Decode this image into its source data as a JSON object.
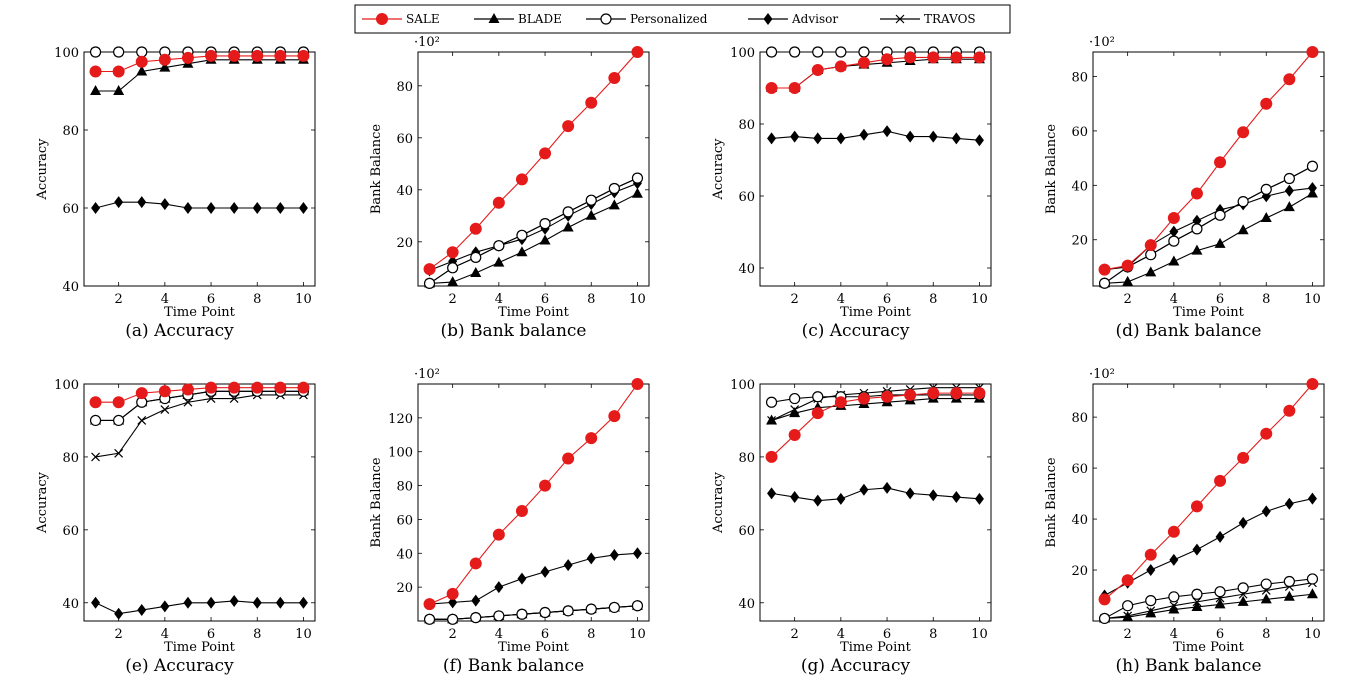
{
  "legend": [
    "SALE",
    "BLADE",
    "Personalized",
    "Advisor",
    "TRAVOS"
  ],
  "colors": {
    "SALE": "#e51b1b",
    "others": "#000000"
  },
  "chart_data": [
    {
      "type": "line",
      "caption": "(a) Accuracy",
      "xlabel": "Time Point",
      "ylabel": "Accuracy",
      "x": [
        1,
        2,
        3,
        4,
        5,
        6,
        7,
        8,
        9,
        10
      ],
      "xticks": [
        2,
        4,
        6,
        8,
        10
      ],
      "ylim": [
        40,
        100
      ],
      "yticks": [
        40,
        60,
        80,
        100
      ],
      "multiplier": "",
      "series": [
        {
          "name": "Advisor",
          "values": [
            60,
            61.5,
            61.5,
            61,
            60,
            60,
            60,
            60,
            60,
            60
          ]
        },
        {
          "name": "BLADE",
          "values": [
            90,
            90,
            95,
            96,
            97,
            98,
            98,
            98,
            98,
            98
          ]
        },
        {
          "name": "TRAVOS",
          "values": [
            100,
            100,
            100,
            100,
            100,
            100,
            100,
            100,
            100,
            100
          ]
        },
        {
          "name": "Personalized",
          "values": [
            100,
            100,
            100,
            100,
            100,
            100,
            100,
            100,
            100,
            100
          ]
        },
        {
          "name": "SALE",
          "values": [
            95,
            95,
            97.5,
            98,
            98.5,
            99,
            99,
            99,
            99,
            99
          ]
        }
      ]
    },
    {
      "type": "line",
      "caption": "(b) Bank balance",
      "xlabel": "Time Point",
      "ylabel": "Bank Balance",
      "x": [
        1,
        2,
        3,
        4,
        5,
        6,
        7,
        8,
        9,
        10
      ],
      "xticks": [
        2,
        4,
        6,
        8,
        10
      ],
      "ylim": [
        3,
        93
      ],
      "yticks": [
        20,
        40,
        60,
        80
      ],
      "multiplier": "·10²",
      "series": [
        {
          "name": "BLADE",
          "values": [
            4,
            4.5,
            8,
            12,
            16,
            20.5,
            25.5,
            30,
            34,
            38.5
          ]
        },
        {
          "name": "Advisor",
          "values": [
            9,
            12.5,
            16,
            18.5,
            21,
            25,
            30,
            34.5,
            39,
            42.5
          ]
        },
        {
          "name": "TRAVOS",
          "values": [
            4,
            10,
            14,
            18.5,
            22.5,
            27,
            31.5,
            36,
            40.5,
            44.5
          ]
        },
        {
          "name": "Personalized",
          "values": [
            4,
            10,
            14,
            18.5,
            22.5,
            27,
            31.5,
            36,
            40.5,
            44.5
          ]
        },
        {
          "name": "SALE",
          "values": [
            9.5,
            16,
            25,
            35,
            44,
            54,
            64.5,
            73.5,
            83,
            93
          ]
        }
      ]
    },
    {
      "type": "line",
      "caption": "(c) Accuracy",
      "xlabel": "Time Point",
      "ylabel": "Accuracy",
      "x": [
        1,
        2,
        3,
        4,
        5,
        6,
        7,
        8,
        9,
        10
      ],
      "xticks": [
        2,
        4,
        6,
        8,
        10
      ],
      "ylim": [
        35,
        100
      ],
      "yticks": [
        40,
        60,
        80,
        100
      ],
      "multiplier": "",
      "series": [
        {
          "name": "Advisor",
          "values": [
            76,
            76.5,
            76,
            76,
            77,
            78,
            76.5,
            76.5,
            76,
            75.5
          ]
        },
        {
          "name": "BLADE",
          "values": [
            90,
            90,
            95,
            96,
            96.5,
            97,
            97.5,
            98,
            98,
            98
          ]
        },
        {
          "name": "TRAVOS",
          "values": [
            100,
            100,
            100,
            100,
            100,
            100,
            100,
            100,
            100,
            100
          ]
        },
        {
          "name": "Personalized",
          "values": [
            100,
            100,
            100,
            100,
            100,
            100,
            100,
            100,
            100,
            100
          ]
        },
        {
          "name": "SALE",
          "values": [
            90,
            90,
            95,
            96,
            97,
            98,
            98.5,
            98.5,
            98.5,
            98.5
          ]
        }
      ]
    },
    {
      "type": "line",
      "caption": "(d) Bank balance",
      "xlabel": "Time Point",
      "ylabel": "Bank Balance",
      "x": [
        1,
        2,
        3,
        4,
        5,
        6,
        7,
        8,
        9,
        10
      ],
      "xticks": [
        2,
        4,
        6,
        8,
        10
      ],
      "ylim": [
        3,
        89
      ],
      "yticks": [
        20,
        40,
        60,
        80
      ],
      "multiplier": "·10²",
      "series": [
        {
          "name": "BLADE",
          "values": [
            4,
            4.5,
            8,
            12,
            16,
            18.5,
            23.5,
            28,
            32,
            37
          ]
        },
        {
          "name": "Advisor",
          "values": [
            9,
            10,
            18,
            23,
            27,
            31,
            33,
            36,
            38,
            39
          ]
        },
        {
          "name": "TRAVOS",
          "values": [
            4,
            10,
            14.5,
            19.5,
            24,
            29,
            34,
            38.5,
            42.5,
            47
          ]
        },
        {
          "name": "Personalized",
          "values": [
            4,
            10,
            14.5,
            19.5,
            24,
            29,
            34,
            38.5,
            42.5,
            47
          ]
        },
        {
          "name": "SALE",
          "values": [
            9,
            10.5,
            18,
            28,
            37,
            48.5,
            59.5,
            70,
            79,
            89
          ]
        }
      ]
    },
    {
      "type": "line",
      "caption": "(e) Accuracy",
      "xlabel": "Time Point",
      "ylabel": "Accuracy",
      "x": [
        1,
        2,
        3,
        4,
        5,
        6,
        7,
        8,
        9,
        10
      ],
      "xticks": [
        2,
        4,
        6,
        8,
        10
      ],
      "ylim": [
        35,
        100
      ],
      "yticks": [
        40,
        60,
        80,
        100
      ],
      "multiplier": "",
      "series": [
        {
          "name": "Advisor",
          "values": [
            40,
            37,
            38,
            39,
            40,
            40,
            40.5,
            40,
            40,
            40
          ]
        },
        {
          "name": "TRAVOS",
          "values": [
            80,
            81,
            90,
            93,
            95,
            96,
            96,
            97,
            97,
            97
          ]
        },
        {
          "name": "BLADE",
          "values": [
            90,
            90,
            95,
            96,
            97,
            98,
            98,
            98,
            98,
            98
          ]
        },
        {
          "name": "Personalized",
          "values": [
            90,
            90,
            95,
            96,
            97,
            98,
            98,
            98,
            98,
            98
          ]
        },
        {
          "name": "SALE",
          "values": [
            95,
            95,
            97.5,
            98,
            98.5,
            99,
            99,
            99,
            99,
            99
          ]
        }
      ]
    },
    {
      "type": "line",
      "caption": "(f) Bank balance",
      "xlabel": "Time Point",
      "ylabel": "Bank Balance",
      "x": [
        1,
        2,
        3,
        4,
        5,
        6,
        7,
        8,
        9,
        10
      ],
      "xticks": [
        2,
        4,
        6,
        8,
        10
      ],
      "ylim": [
        0,
        140
      ],
      "yticks": [
        20,
        40,
        60,
        80,
        100,
        120
      ],
      "multiplier": "·10²",
      "series": [
        {
          "name": "BLADE",
          "values": [
            1,
            1,
            2,
            3,
            4,
            5,
            6,
            7,
            8,
            9
          ]
        },
        {
          "name": "TRAVOS",
          "values": [
            1,
            1,
            2,
            3,
            4,
            5,
            6,
            7,
            8,
            9
          ]
        },
        {
          "name": "Personalized",
          "values": [
            1,
            1,
            2,
            3,
            4,
            5,
            6,
            7,
            8,
            9
          ]
        },
        {
          "name": "Advisor",
          "values": [
            10,
            11,
            12,
            20,
            25,
            29,
            33,
            37,
            39,
            40
          ]
        },
        {
          "name": "SALE",
          "values": [
            10,
            16,
            34,
            51,
            65,
            80,
            96,
            108,
            121,
            140
          ]
        }
      ]
    },
    {
      "type": "line",
      "caption": "(g) Accuracy",
      "xlabel": "Time Point",
      "ylabel": "Accuracy",
      "x": [
        1,
        2,
        3,
        4,
        5,
        6,
        7,
        8,
        9,
        10
      ],
      "xticks": [
        2,
        4,
        6,
        8,
        10
      ],
      "ylim": [
        35,
        100
      ],
      "yticks": [
        40,
        60,
        80,
        100
      ],
      "multiplier": "",
      "series": [
        {
          "name": "Advisor",
          "values": [
            70,
            69,
            68,
            68.5,
            71,
            71.5,
            70,
            69.5,
            69,
            68.5
          ]
        },
        {
          "name": "BLADE",
          "values": [
            90,
            92,
            93.5,
            94,
            94.5,
            95,
            95.5,
            96,
            96,
            96
          ]
        },
        {
          "name": "TRAVOS",
          "values": [
            90,
            93,
            96,
            97,
            97.5,
            98,
            98.5,
            99,
            99,
            99
          ]
        },
        {
          "name": "Personalized",
          "values": [
            95,
            96,
            96.5,
            96.5,
            96.5,
            97,
            97,
            97,
            97,
            97
          ]
        },
        {
          "name": "SALE",
          "values": [
            80,
            86,
            92,
            95,
            96,
            96.5,
            97,
            97.5,
            97.5,
            97.5
          ]
        }
      ]
    },
    {
      "type": "line",
      "caption": "(h) Bank balance",
      "xlabel": "Time Point",
      "ylabel": "Bank Balance",
      "x": [
        1,
        2,
        3,
        4,
        5,
        6,
        7,
        8,
        9,
        10
      ],
      "xticks": [
        2,
        4,
        6,
        8,
        10
      ],
      "ylim": [
        0,
        93
      ],
      "yticks": [
        20,
        40,
        60,
        80
      ],
      "multiplier": "·10²",
      "series": [
        {
          "name": "BLADE",
          "values": [
            1,
            1.5,
            3,
            4.5,
            5.5,
            6.5,
            7.5,
            8.5,
            9.5,
            10.5
          ]
        },
        {
          "name": "TRAVOS",
          "values": [
            1,
            2,
            4,
            6,
            7.5,
            9,
            10.5,
            12,
            13.5,
            15
          ]
        },
        {
          "name": "Personalized",
          "values": [
            1,
            6,
            8,
            9.5,
            10.5,
            11.5,
            13,
            14.5,
            15.5,
            16.5
          ]
        },
        {
          "name": "Advisor",
          "values": [
            10,
            15,
            20,
            24,
            28,
            33,
            38.5,
            43,
            46,
            48
          ]
        },
        {
          "name": "SALE",
          "values": [
            8.5,
            16,
            26,
            35,
            45,
            55,
            64,
            73.5,
            82.5,
            93
          ]
        }
      ]
    }
  ]
}
